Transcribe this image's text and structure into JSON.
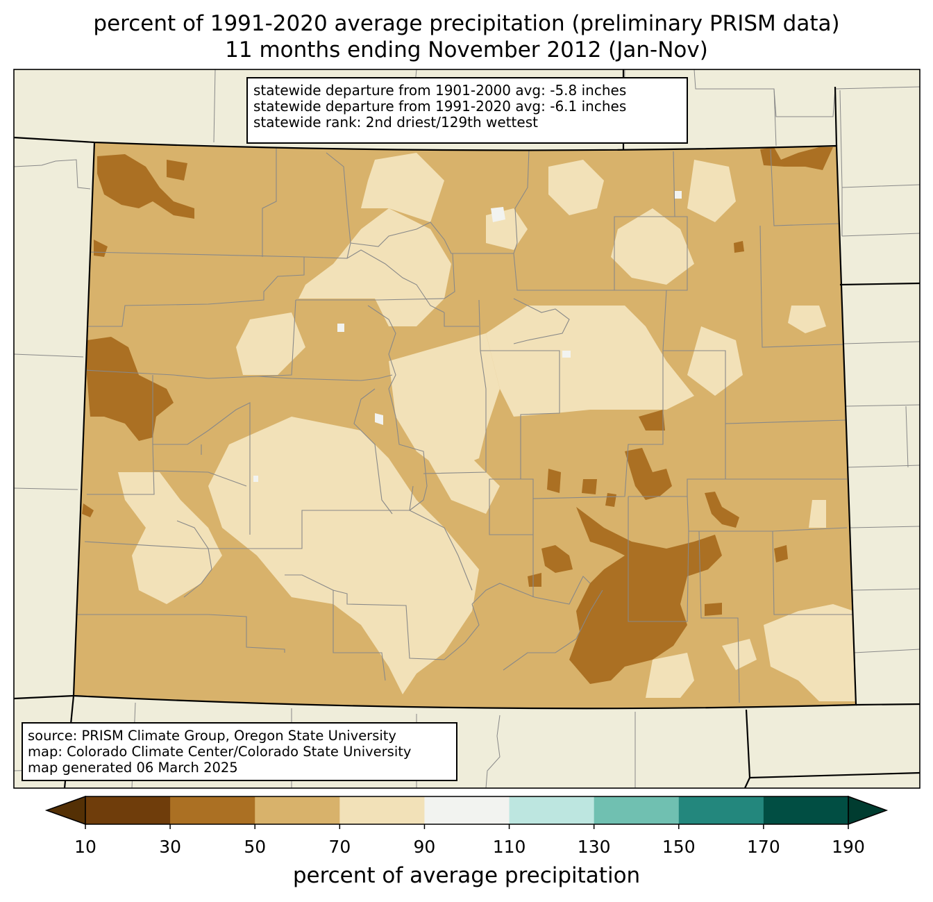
{
  "title": {
    "line1": "percent of 1991-2020 average precipitation (preliminary PRISM data)",
    "line2": "11 months ending November 2012 (Jan-Nov)"
  },
  "stats": {
    "line1": "statewide departure from 1901-2000 avg: -5.8 inches",
    "line2": "statewide departure from 1991-2020 avg: -6.1 inches",
    "line3": "statewide rank: 2nd driest/129th wettest"
  },
  "source": {
    "line1": "source: PRISM Climate Group, Oregon State University",
    "line2": "map: Colorado Climate Center/Colorado State University",
    "line3": "map generated 06 March 2025"
  },
  "colorbar": {
    "label": "percent of average precipitation",
    "ticks": [
      "10",
      "30",
      "50",
      "70",
      "90",
      "110",
      "130",
      "150",
      "170",
      "190"
    ],
    "colors": {
      "under": "#543005",
      "bins": [
        "#6f3d0b",
        "#ab7023",
        "#d8b26b",
        "#f2e1b8",
        "#f2f3f0",
        "#bde6e0",
        "#70c0b1",
        "#23877d",
        "#014e43"
      ],
      "over": "#003c30"
    }
  },
  "map_colors": {
    "background_land": "#efedda",
    "county_lines": "#888888",
    "state_lines": "#000000"
  }
}
